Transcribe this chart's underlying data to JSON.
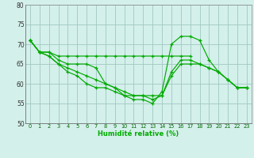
{
  "xlabel": "Humidité relative (%)",
  "ylabel": "",
  "bg_color": "#d4f0eb",
  "grid_color": "#a0c8c0",
  "line_color": "#00aa00",
  "xlim": [
    -0.5,
    23.5
  ],
  "ylim": [
    50,
    80
  ],
  "yticks": [
    50,
    55,
    60,
    65,
    70,
    75,
    80
  ],
  "xticks": [
    0,
    1,
    2,
    3,
    4,
    5,
    6,
    7,
    8,
    9,
    10,
    11,
    12,
    13,
    14,
    15,
    16,
    17,
    18,
    19,
    20,
    21,
    22,
    23
  ],
  "lines": [
    {
      "x": [
        0,
        1,
        2,
        3,
        4,
        5,
        6,
        7,
        8,
        9,
        10,
        11,
        12,
        13,
        14,
        15,
        16,
        17,
        18,
        19,
        20,
        21,
        22,
        23
      ],
      "y": [
        71,
        68,
        68,
        66,
        65,
        65,
        65,
        64,
        60,
        59,
        57,
        56,
        56,
        55,
        58,
        70,
        72,
        72,
        71,
        66,
        63,
        61,
        59,
        59
      ]
    },
    {
      "x": [
        0,
        1,
        2,
        3,
        4,
        5,
        6,
        7,
        8,
        9,
        10,
        11,
        12,
        13,
        14,
        15,
        16,
        17
      ],
      "y": [
        71,
        68,
        68,
        67,
        67,
        67,
        67,
        67,
        67,
        67,
        67,
        67,
        67,
        67,
        67,
        67,
        67,
        67
      ]
    },
    {
      "x": [
        0,
        1,
        2,
        3,
        4,
        5,
        6,
        7,
        8,
        9,
        10,
        11,
        12,
        13,
        14,
        15,
        16,
        17,
        18,
        19,
        20,
        21,
        22,
        23
      ],
      "y": [
        71,
        68,
        67,
        65,
        64,
        63,
        62,
        61,
        60,
        59,
        58,
        57,
        57,
        56,
        57,
        63,
        66,
        66,
        65,
        64,
        63,
        61,
        59,
        59
      ]
    },
    {
      "x": [
        0,
        1,
        2,
        3,
        4,
        5,
        6,
        7,
        8,
        9,
        10,
        11,
        12,
        13,
        14,
        15,
        16,
        17,
        18,
        19,
        20,
        21,
        22,
        23
      ],
      "y": [
        71,
        68,
        67,
        65,
        63,
        62,
        60,
        59,
        59,
        58,
        57,
        57,
        57,
        57,
        57,
        62,
        65,
        65,
        65,
        64,
        63,
        61,
        59,
        59
      ]
    }
  ]
}
